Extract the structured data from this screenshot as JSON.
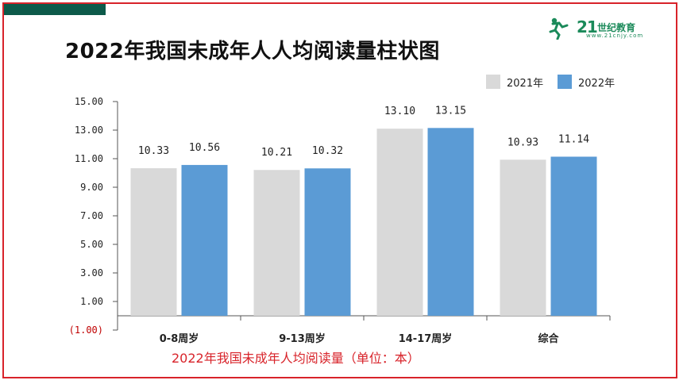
{
  "brand": {
    "logo_text": "21",
    "logo_sub": "世纪教育",
    "logo_url": "www.21cnjy.com"
  },
  "colors": {
    "frame": "#d8232a",
    "band": "#0d5a4a",
    "series_2021": "#d9d9d9",
    "series_2022": "#5b9bd5",
    "caption": "#d8232a"
  },
  "caption": "2022年我国未成年人均阅读量（单位：本）",
  "chart_data": {
    "type": "bar",
    "title": "2022年我国未成年人人均阅读量柱状图",
    "categories": [
      "0-8周岁",
      "9-13周岁",
      "14-17周岁",
      "综合"
    ],
    "series": [
      {
        "name": "2021年",
        "values": [
          10.33,
          10.21,
          13.1,
          10.93
        ],
        "labels": [
          "10.33",
          "10.21",
          "13.10",
          "10.93"
        ]
      },
      {
        "name": "2022年",
        "values": [
          10.56,
          10.32,
          13.15,
          11.14
        ],
        "labels": [
          "10.56",
          "10.32",
          "13.15",
          "11.14"
        ]
      }
    ],
    "ylim": [
      -1,
      15
    ],
    "yticks": [
      -1,
      1,
      3,
      5,
      7,
      9,
      11,
      13,
      15
    ],
    "ytick_labels": [
      "(1.00)",
      "1.00",
      "3.00",
      "5.00",
      "7.00",
      "9.00",
      "11.00",
      "13.00",
      "15.00"
    ],
    "legend_position": "top-right",
    "grid": false
  }
}
